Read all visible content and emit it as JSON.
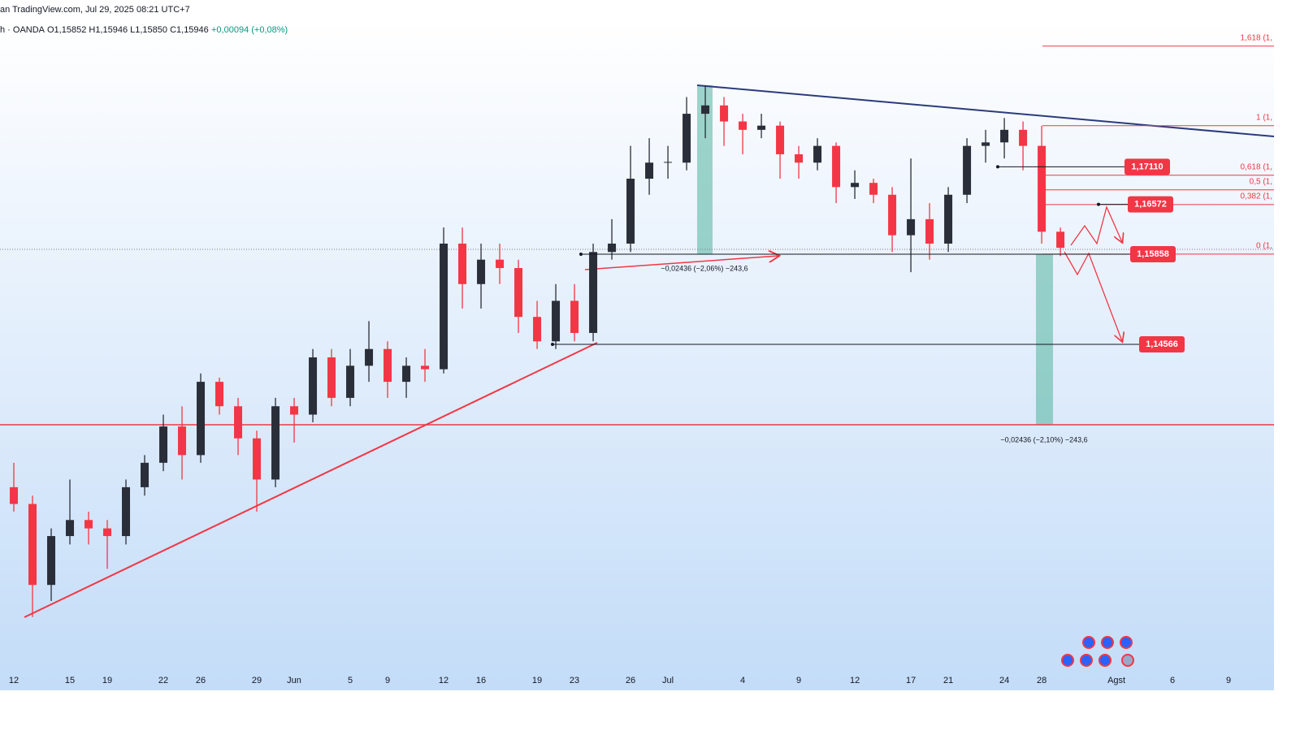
{
  "header": {
    "source": "an TradingView.com, Jul 29, 2025 08:21 UTC+7",
    "symbol": "h · OANDA",
    "ohlc": "O1,15852  H1,15946  L1,15850  C1,15946",
    "change": "+0,00094 (+0,08%)"
  },
  "chart_data": {
    "type": "candlestick",
    "x": [
      0,
      1,
      2,
      3,
      4,
      5,
      6,
      7,
      8,
      9,
      10,
      11,
      12,
      13,
      14,
      15,
      16,
      17,
      18,
      19,
      20,
      21,
      22,
      23,
      24,
      25,
      26,
      27,
      28,
      29,
      30,
      31,
      32,
      33,
      34,
      35,
      36,
      37,
      38,
      39,
      40,
      41,
      42,
      43,
      44,
      45,
      46,
      47,
      48,
      49,
      50,
      51,
      52,
      53,
      54,
      55,
      56
    ],
    "open": [
      1.1252,
      1.1228,
      1.1112,
      1.1182,
      1.1205,
      1.1193,
      1.1182,
      1.1252,
      1.1287,
      1.1339,
      1.1298,
      1.1403,
      1.1368,
      1.1322,
      1.1263,
      1.1368,
      1.1356,
      1.1438,
      1.138,
      1.1426,
      1.145,
      1.1403,
      1.1426,
      1.1421,
      1.1601,
      1.1543,
      1.1578,
      1.1566,
      1.1496,
      1.1461,
      1.1519,
      1.1473,
      1.1589,
      1.1601,
      1.1694,
      1.1717,
      1.1717,
      1.1787,
      1.1799,
      1.1776,
      1.1764,
      1.177,
      1.1729,
      1.1717,
      1.1741,
      1.1682,
      1.1688,
      1.1671,
      1.1613,
      1.1636,
      1.1601,
      1.1671,
      1.1741,
      1.1746,
      1.1764,
      1.1741,
      1.1618
    ],
    "high": [
      1.1287,
      1.124,
      1.1193,
      1.1263,
      1.1217,
      1.1205,
      1.1263,
      1.1298,
      1.1356,
      1.1368,
      1.1415,
      1.1409,
      1.138,
      1.1333,
      1.138,
      1.138,
      1.145,
      1.145,
      1.145,
      1.149,
      1.1461,
      1.1438,
      1.145,
      1.1624,
      1.1624,
      1.1601,
      1.1601,
      1.1578,
      1.1519,
      1.1543,
      1.1543,
      1.1601,
      1.1636,
      1.1741,
      1.1752,
      1.1741,
      1.1811,
      1.1828,
      1.1811,
      1.1787,
      1.1787,
      1.1776,
      1.1741,
      1.1752,
      1.1746,
      1.1706,
      1.1694,
      1.1682,
      1.1723,
      1.1659,
      1.1682,
      1.1752,
      1.1764,
      1.1781,
      1.1776,
      1.177,
      1.1624
    ],
    "low": [
      1.1217,
      1.1066,
      1.1089,
      1.117,
      1.117,
      1.1135,
      1.117,
      1.124,
      1.1275,
      1.1263,
      1.1287,
      1.1356,
      1.1298,
      1.1217,
      1.1252,
      1.1316,
      1.1345,
      1.1368,
      1.1368,
      1.1403,
      1.138,
      1.138,
      1.1403,
      1.1415,
      1.1508,
      1.1508,
      1.1543,
      1.1473,
      1.145,
      1.145,
      1.1461,
      1.1461,
      1.1578,
      1.1589,
      1.1671,
      1.1694,
      1.1706,
      1.1752,
      1.1741,
      1.1729,
      1.1752,
      1.1694,
      1.1694,
      1.1706,
      1.1659,
      1.1665,
      1.1659,
      1.1589,
      1.156,
      1.1578,
      1.1589,
      1.1659,
      1.1717,
      1.1723,
      1.1706,
      1.1601,
      1.1583
    ],
    "close": [
      1.1228,
      1.1112,
      1.1182,
      1.1205,
      1.1193,
      1.1182,
      1.1252,
      1.1287,
      1.1339,
      1.1298,
      1.1403,
      1.1368,
      1.1322,
      1.1263,
      1.1368,
      1.1356,
      1.1438,
      1.138,
      1.1426,
      1.145,
      1.1403,
      1.1426,
      1.1421,
      1.1601,
      1.1543,
      1.1578,
      1.1566,
      1.1496,
      1.1461,
      1.1519,
      1.1473,
      1.1589,
      1.1601,
      1.1694,
      1.1717,
      1.1718,
      1.1787,
      1.1799,
      1.1776,
      1.1764,
      1.177,
      1.1729,
      1.1717,
      1.1741,
      1.1682,
      1.1688,
      1.1671,
      1.1613,
      1.1636,
      1.1601,
      1.1671,
      1.1741,
      1.1746,
      1.1764,
      1.1741,
      1.1618,
      1.1595
    ],
    "up_color": "#2a2e39",
    "down_color": "#f23645",
    "xlim": [
      -0.74,
      67.43
    ],
    "ylim": [
      1.0961,
      1.195
    ],
    "xticks": [
      {
        "value": 0,
        "label": "12"
      },
      {
        "value": 3,
        "label": "15"
      },
      {
        "value": 5,
        "label": "19"
      },
      {
        "value": 8,
        "label": "22"
      },
      {
        "value": 10,
        "label": "26"
      },
      {
        "value": 13,
        "label": "29"
      },
      {
        "value": 15,
        "label": "Jun"
      },
      {
        "value": 18,
        "label": "5"
      },
      {
        "value": 20,
        "label": "9"
      },
      {
        "value": 23,
        "label": "12"
      },
      {
        "value": 25,
        "label": "16"
      },
      {
        "value": 28,
        "label": "19"
      },
      {
        "value": 30,
        "label": "23"
      },
      {
        "value": 33,
        "label": "26"
      },
      {
        "value": 35,
        "label": "Jul"
      },
      {
        "value": 39,
        "label": "4"
      },
      {
        "value": 42,
        "label": "9"
      },
      {
        "value": 45,
        "label": "12"
      },
      {
        "value": 48,
        "label": "17"
      },
      {
        "value": 50,
        "label": "21"
      },
      {
        "value": 53,
        "label": "24"
      },
      {
        "value": 55,
        "label": "28"
      },
      {
        "value": 59,
        "label": "Agst"
      },
      {
        "value": 62,
        "label": "6"
      },
      {
        "value": 65,
        "label": "9"
      }
    ],
    "price_labels": [
      {
        "value": 1.1711,
        "label": "1,17110"
      },
      {
        "value": 1.16572,
        "label": "1,16572"
      },
      {
        "value": 1.15858,
        "label": "1,15858"
      },
      {
        "value": 1.14566,
        "label": "1,14566"
      }
    ],
    "fib_levels": [
      {
        "value": 1.1884,
        "label": "1,618 (1,"
      },
      {
        "value": 1.177,
        "label": "1 (1,"
      },
      {
        "value": 1.1699,
        "label": "0,618 (1,"
      },
      {
        "value": 1.1678,
        "label": "0,5 (1,"
      },
      {
        "value": 1.1657,
        "label": "0,382 (1,"
      },
      {
        "value": 1.1586,
        "label": "0 (1,"
      }
    ],
    "annotations": [
      "−0,02436 (−2,06%) −243,6",
      "−0,02436 (−2,10%) −243,6"
    ]
  }
}
